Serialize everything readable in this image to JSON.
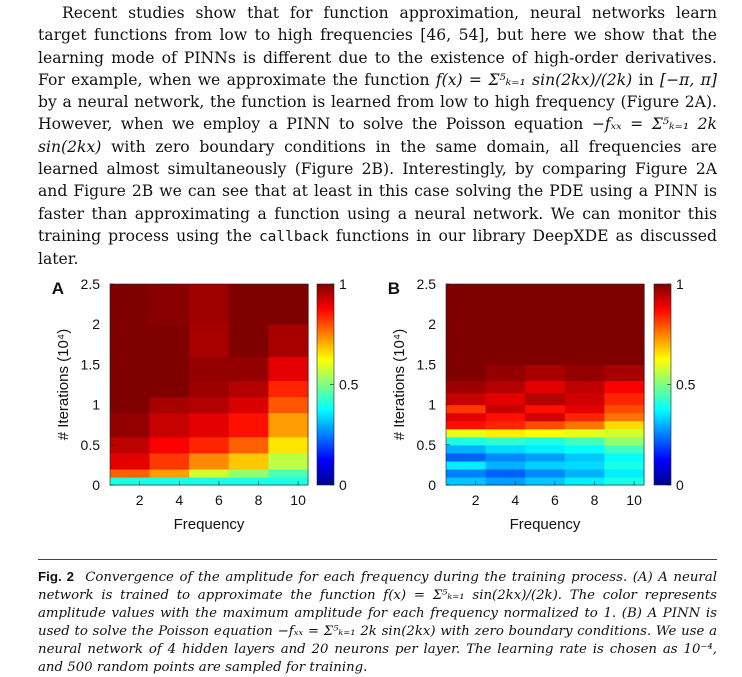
{
  "body_paragraph": {
    "line_a": "Recent studies show that for function approximation, neural networks learn target functions from low to high frequencies [46, 54], but here we show that the learning mode of PINNs is different due to the existence of high-order derivatives. For example, when we approximate the function ",
    "math_f": "f(x) = Σ⁵ₖ₌₁ sin(2kx)/(2k)",
    "line_b": " in ",
    "math_domain": "[−π, π]",
    "line_c": " by a neural network, the function is learned from low to high frequency (Figure 2A). However, when we employ a PINN to solve the Poisson equation ",
    "math_pde": "−fₓₓ = Σ⁵ₖ₌₁ 2k sin(2kx)",
    "line_d": " with zero boundary conditions in the same domain, all frequencies are learned almost simultaneously (Figure 2B). Interestingly, by comparing Figure 2A and Figure 2B we can see that at least in this case solving the PDE using a PINN is faster than approximating a function using a neural network. We can monitor this training process using the ",
    "code_word": "callback",
    "line_e": " functions in our library DeepXDE as discussed later."
  },
  "chart_data": [
    {
      "type": "heatmap",
      "panel_label": "A",
      "xlabel": "Frequency",
      "ylabel": "# Iterations (10⁴)",
      "x": [
        1,
        2,
        3,
        4,
        5,
        6,
        7,
        8,
        9,
        10
      ],
      "x_ticks": [
        "2",
        "4",
        "6",
        "8",
        "10"
      ],
      "y_ticks": [
        "0",
        "0.5",
        "1",
        "1.5",
        "2",
        "2.5"
      ],
      "ylim": [
        0,
        2.5
      ],
      "colorbar_ticks": [
        "0",
        "0.5",
        "1"
      ],
      "clim": [
        0,
        1
      ],
      "rows": [
        {
          "y_start": 0.0,
          "y_end": 0.1,
          "values": [
            0.4,
            0.4,
            0.4,
            0.4,
            0.4,
            0.4,
            0.4,
            0.4,
            0.4,
            0.4
          ]
        },
        {
          "y_start": 0.1,
          "y_end": 0.2,
          "values": [
            0.78,
            0.78,
            0.72,
            0.72,
            0.58,
            0.58,
            0.52,
            0.52,
            0.45,
            0.45
          ]
        },
        {
          "y_start": 0.2,
          "y_end": 0.4,
          "values": [
            0.9,
            0.9,
            0.82,
            0.82,
            0.74,
            0.74,
            0.68,
            0.68,
            0.56,
            0.56
          ]
        },
        {
          "y_start": 0.4,
          "y_end": 0.6,
          "values": [
            0.94,
            0.94,
            0.88,
            0.88,
            0.84,
            0.84,
            0.78,
            0.78,
            0.65,
            0.65
          ]
        },
        {
          "y_start": 0.6,
          "y_end": 0.9,
          "values": [
            0.98,
            0.98,
            0.93,
            0.93,
            0.9,
            0.9,
            0.86,
            0.86,
            0.72,
            0.72
          ]
        },
        {
          "y_start": 0.9,
          "y_end": 1.1,
          "values": [
            1.0,
            1.0,
            0.96,
            0.96,
            0.95,
            0.95,
            0.91,
            0.91,
            0.79,
            0.79
          ]
        },
        {
          "y_start": 1.1,
          "y_end": 1.3,
          "values": [
            1.0,
            1.0,
            1.0,
            1.0,
            0.97,
            0.97,
            0.95,
            0.95,
            0.84,
            0.84
          ]
        },
        {
          "y_start": 1.3,
          "y_end": 1.6,
          "values": [
            1.0,
            1.0,
            1.0,
            1.0,
            0.98,
            0.98,
            0.98,
            0.98,
            0.9,
            0.9
          ]
        },
        {
          "y_start": 1.6,
          "y_end": 2.0,
          "values": [
            1.0,
            1.0,
            1.0,
            1.0,
            0.96,
            0.96,
            1.0,
            1.0,
            0.96,
            0.96
          ]
        },
        {
          "y_start": 2.0,
          "y_end": 2.5,
          "values": [
            1.0,
            1.0,
            0.99,
            0.99,
            0.97,
            0.97,
            1.0,
            1.0,
            1.0,
            1.0
          ]
        }
      ]
    },
    {
      "type": "heatmap",
      "panel_label": "B",
      "xlabel": "Frequency",
      "ylabel": "# Iterations (10⁴)",
      "x": [
        1,
        2,
        3,
        4,
        5,
        6,
        7,
        8,
        9,
        10
      ],
      "x_ticks": [
        "2",
        "4",
        "6",
        "8",
        "10"
      ],
      "y_ticks": [
        "0",
        "0.5",
        "1",
        "1.5",
        "2",
        "2.5"
      ],
      "ylim": [
        0,
        2.5
      ],
      "colorbar_ticks": [
        "0",
        "0.5",
        "1"
      ],
      "clim": [
        0,
        1
      ],
      "rows": [
        {
          "y_start": 0.0,
          "y_end": 0.1,
          "values": [
            0.32,
            0.32,
            0.28,
            0.28,
            0.32,
            0.32,
            0.36,
            0.36,
            0.4,
            0.4
          ]
        },
        {
          "y_start": 0.1,
          "y_end": 0.2,
          "values": [
            0.25,
            0.25,
            0.22,
            0.22,
            0.26,
            0.26,
            0.3,
            0.3,
            0.36,
            0.36
          ]
        },
        {
          "y_start": 0.2,
          "y_end": 0.3,
          "values": [
            0.36,
            0.36,
            0.3,
            0.3,
            0.33,
            0.33,
            0.34,
            0.34,
            0.4,
            0.4
          ]
        },
        {
          "y_start": 0.3,
          "y_end": 0.4,
          "values": [
            0.22,
            0.22,
            0.26,
            0.26,
            0.28,
            0.28,
            0.32,
            0.32,
            0.38,
            0.38
          ]
        },
        {
          "y_start": 0.4,
          "y_end": 0.5,
          "values": [
            0.3,
            0.3,
            0.34,
            0.34,
            0.36,
            0.36,
            0.38,
            0.38,
            0.44,
            0.44
          ]
        },
        {
          "y_start": 0.5,
          "y_end": 0.6,
          "values": [
            0.4,
            0.4,
            0.42,
            0.42,
            0.4,
            0.4,
            0.44,
            0.44,
            0.52,
            0.52
          ]
        },
        {
          "y_start": 0.6,
          "y_end": 0.7,
          "values": [
            0.6,
            0.6,
            0.64,
            0.64,
            0.62,
            0.62,
            0.6,
            0.6,
            0.58,
            0.58
          ]
        },
        {
          "y_start": 0.7,
          "y_end": 0.8,
          "values": [
            0.86,
            0.86,
            0.84,
            0.84,
            0.8,
            0.8,
            0.76,
            0.76,
            0.66,
            0.66
          ]
        },
        {
          "y_start": 0.8,
          "y_end": 0.9,
          "values": [
            0.9,
            0.9,
            0.86,
            0.86,
            0.92,
            0.92,
            0.84,
            0.84,
            0.76,
            0.76
          ]
        },
        {
          "y_start": 0.9,
          "y_end": 1.0,
          "values": [
            0.82,
            0.82,
            0.93,
            0.93,
            0.86,
            0.86,
            0.9,
            0.9,
            0.8,
            0.8
          ]
        },
        {
          "y_start": 1.0,
          "y_end": 1.15,
          "values": [
            0.93,
            0.93,
            0.9,
            0.9,
            0.95,
            0.95,
            0.92,
            0.92,
            0.84,
            0.84
          ]
        },
        {
          "y_start": 1.15,
          "y_end": 1.3,
          "values": [
            0.97,
            0.97,
            0.95,
            0.95,
            0.9,
            0.9,
            0.94,
            0.94,
            0.88,
            0.88
          ]
        },
        {
          "y_start": 1.3,
          "y_end": 1.5,
          "values": [
            1.0,
            1.0,
            0.98,
            0.98,
            0.96,
            0.96,
            0.98,
            0.98,
            0.96,
            0.96
          ]
        },
        {
          "y_start": 1.5,
          "y_end": 2.5,
          "values": [
            1.0,
            1.0,
            1.0,
            1.0,
            1.0,
            1.0,
            1.0,
            1.0,
            1.0,
            1.0
          ]
        }
      ]
    }
  ],
  "caption": {
    "label": "Fig. 2",
    "text_a": "Convergence of the amplitude for each frequency during the training process. (A) A neural network is trained to approximate the function ",
    "math_f": "f(x) = Σ⁵ₖ₌₁ sin(2kx)/(2k)",
    "text_b": ". The color represents amplitude values with the maximum amplitude for each frequency normalized to 1. (B) A PINN is used to solve the Poisson equation ",
    "math_pde": "−fₓₓ = Σ⁵ₖ₌₁ 2k sin(2kx)",
    "text_c": " with zero boundary conditions. We use a neural network of 4 hidden layers and 20 neurons per layer. The learning rate is chosen as ",
    "math_lr": "10⁻⁴",
    "text_d": ", and 500 random points are sampled for training."
  }
}
